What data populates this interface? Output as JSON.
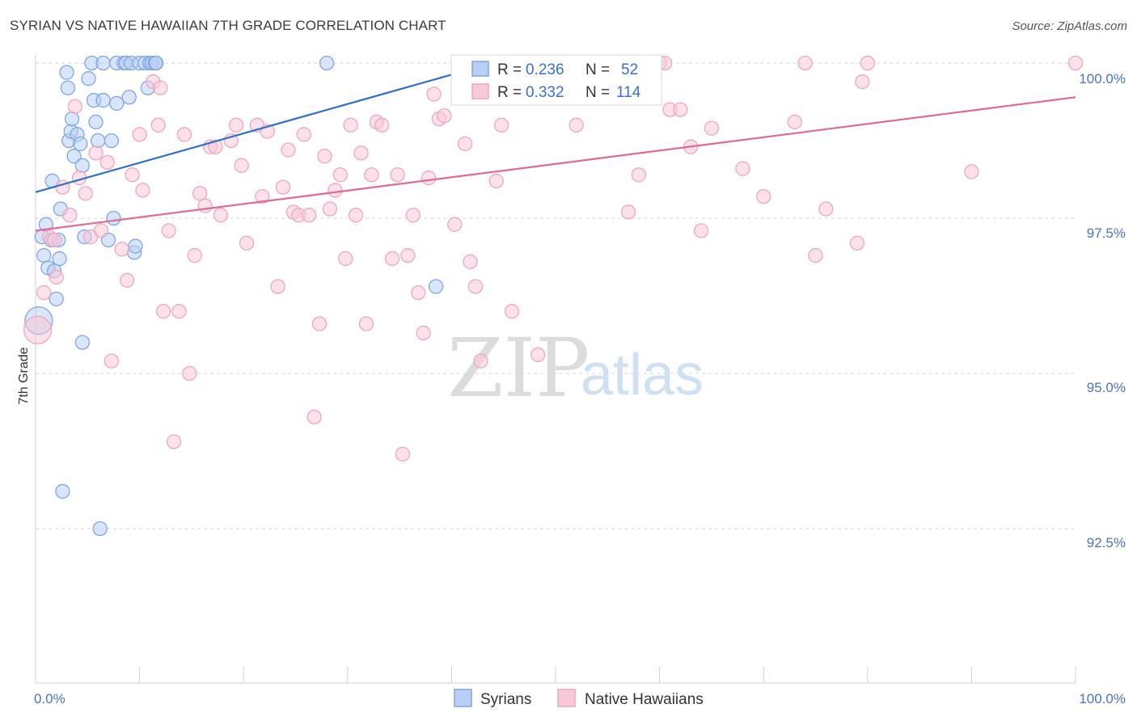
{
  "chart_data": {
    "type": "scatter",
    "title": "SYRIAN VS NATIVE HAWAIIAN 7TH GRADE CORRELATION CHART",
    "source": "Source: ZipAtlas.com",
    "ylabel": "7th Grade",
    "xlim": [
      0,
      100
    ],
    "ylim": [
      90.0,
      100.4
    ],
    "x_tick_labels": [
      "0.0%",
      "100.0%"
    ],
    "y_ticks": [
      100.0,
      97.5,
      95.0,
      92.5
    ],
    "y_tick_labels": [
      "100.0%",
      "97.5%",
      "95.0%",
      "92.5%"
    ],
    "watermark": {
      "zip": "ZIP",
      "atlas": "atlas"
    },
    "legend": [
      {
        "r_label": "R =",
        "r_value": "0.236",
        "n_label": "N =",
        "n_value": "52"
      },
      {
        "r_label": "R =",
        "r_value": "0.332",
        "n_label": "N =",
        "n_value": "114"
      }
    ],
    "series": [
      {
        "name": "Syrians",
        "color": "#7fa6e6",
        "fill": "#b9cff3",
        "line_color": "#2f6fcc",
        "trend": {
          "x": [
            0,
            45
          ],
          "y": [
            97.92,
            100.05
          ]
        },
        "points": [
          [
            0.3,
            95.85
          ],
          [
            0.6,
            97.2
          ],
          [
            0.8,
            96.9
          ],
          [
            1.0,
            97.4
          ],
          [
            1.2,
            96.7
          ],
          [
            1.5,
            97.15
          ],
          [
            1.6,
            98.1
          ],
          [
            1.8,
            96.65
          ],
          [
            2.0,
            96.2
          ],
          [
            2.2,
            97.15
          ],
          [
            2.3,
            96.85
          ],
          [
            2.4,
            97.65
          ],
          [
            2.6,
            93.1
          ],
          [
            3.0,
            99.85
          ],
          [
            3.1,
            99.6
          ],
          [
            3.2,
            98.75
          ],
          [
            3.4,
            98.9
          ],
          [
            3.5,
            99.1
          ],
          [
            3.7,
            98.5
          ],
          [
            4.0,
            98.85
          ],
          [
            4.3,
            98.7
          ],
          [
            4.5,
            98.35
          ],
          [
            4.5,
            95.5
          ],
          [
            4.7,
            97.2
          ],
          [
            5.1,
            99.75
          ],
          [
            5.4,
            100.0
          ],
          [
            5.6,
            99.4
          ],
          [
            5.8,
            99.05
          ],
          [
            6.0,
            98.75
          ],
          [
            6.2,
            92.5
          ],
          [
            6.5,
            100.0
          ],
          [
            6.5,
            99.4
          ],
          [
            7.0,
            97.15
          ],
          [
            7.3,
            98.75
          ],
          [
            7.5,
            97.5
          ],
          [
            7.8,
            100.0
          ],
          [
            7.8,
            99.35
          ],
          [
            8.5,
            100.0
          ],
          [
            8.7,
            100.0
          ],
          [
            9.0,
            99.45
          ],
          [
            9.2,
            100.0
          ],
          [
            9.5,
            96.95
          ],
          [
            9.6,
            97.05
          ],
          [
            10.0,
            100.0
          ],
          [
            10.5,
            100.0
          ],
          [
            10.8,
            99.6
          ],
          [
            11.0,
            100.0
          ],
          [
            11.2,
            100.0
          ],
          [
            11.5,
            100.0
          ],
          [
            11.6,
            100.0
          ],
          [
            28.0,
            100.0
          ],
          [
            38.5,
            96.4
          ]
        ]
      },
      {
        "name": "Native Hawaiians",
        "color": "#f0a6bd",
        "fill": "#f8c9d7",
        "line_color": "#e06a93",
        "trend": {
          "x": [
            0,
            100
          ],
          "y": [
            97.3,
            99.45
          ]
        },
        "points": [
          [
            0.2,
            95.7
          ],
          [
            0.8,
            96.3
          ],
          [
            1.3,
            97.2
          ],
          [
            1.8,
            97.15
          ],
          [
            2.0,
            96.55
          ],
          [
            2.6,
            98.0
          ],
          [
            3.3,
            97.55
          ],
          [
            3.8,
            99.3
          ],
          [
            4.2,
            98.15
          ],
          [
            4.8,
            97.9
          ],
          [
            5.3,
            97.2
          ],
          [
            5.8,
            98.55
          ],
          [
            6.3,
            97.3
          ],
          [
            6.9,
            98.4
          ],
          [
            7.3,
            95.2
          ],
          [
            8.3,
            97.0
          ],
          [
            8.8,
            96.5
          ],
          [
            9.3,
            98.2
          ],
          [
            10.0,
            98.85
          ],
          [
            10.3,
            97.95
          ],
          [
            11.3,
            99.7
          ],
          [
            11.8,
            99.0
          ],
          [
            12.3,
            96.0
          ],
          [
            12.8,
            97.3
          ],
          [
            13.3,
            93.9
          ],
          [
            13.8,
            96.0
          ],
          [
            14.3,
            98.85
          ],
          [
            14.8,
            95.0
          ],
          [
            15.3,
            96.9
          ],
          [
            15.8,
            97.9
          ],
          [
            16.3,
            97.7
          ],
          [
            16.8,
            98.65
          ],
          [
            17.3,
            98.65
          ],
          [
            17.8,
            97.55
          ],
          [
            18.8,
            98.75
          ],
          [
            19.3,
            99.0
          ],
          [
            19.8,
            98.35
          ],
          [
            20.3,
            97.1
          ],
          [
            21.3,
            99.0
          ],
          [
            21.8,
            97.85
          ],
          [
            22.3,
            98.9
          ],
          [
            23.3,
            96.4
          ],
          [
            23.8,
            98.0
          ],
          [
            24.3,
            98.6
          ],
          [
            24.8,
            97.6
          ],
          [
            25.3,
            97.55
          ],
          [
            25.8,
            98.85
          ],
          [
            26.3,
            97.55
          ],
          [
            26.8,
            94.3
          ],
          [
            27.3,
            95.8
          ],
          [
            27.8,
            98.5
          ],
          [
            28.3,
            97.65
          ],
          [
            28.8,
            97.95
          ],
          [
            29.3,
            98.2
          ],
          [
            29.8,
            96.85
          ],
          [
            30.3,
            99.0
          ],
          [
            30.8,
            97.55
          ],
          [
            31.3,
            98.55
          ],
          [
            31.8,
            95.8
          ],
          [
            32.3,
            98.2
          ],
          [
            32.8,
            99.05
          ],
          [
            33.3,
            99.0
          ],
          [
            34.3,
            96.85
          ],
          [
            34.8,
            98.2
          ],
          [
            35.3,
            93.7
          ],
          [
            35.8,
            96.9
          ],
          [
            36.3,
            97.55
          ],
          [
            36.8,
            96.3
          ],
          [
            37.3,
            95.65
          ],
          [
            37.8,
            98.15
          ],
          [
            38.3,
            99.5
          ],
          [
            38.8,
            99.1
          ],
          [
            39.3,
            99.15
          ],
          [
            40.3,
            97.4
          ],
          [
            41.3,
            98.7
          ],
          [
            41.8,
            96.8
          ],
          [
            42.3,
            96.4
          ],
          [
            42.8,
            95.2
          ],
          [
            43.8,
            100.0
          ],
          [
            44.3,
            98.1
          ],
          [
            44.8,
            99.0
          ],
          [
            45.8,
            96.0
          ],
          [
            46.8,
            100.0
          ],
          [
            47.3,
            100.0
          ],
          [
            48.3,
            95.3
          ],
          [
            49.0,
            100.0
          ],
          [
            50.0,
            100.0
          ],
          [
            52.0,
            99.0
          ],
          [
            54.0,
            100.0
          ],
          [
            56.0,
            100.0
          ],
          [
            57.0,
            97.6
          ],
          [
            58.0,
            98.2
          ],
          [
            59.0,
            100.0
          ],
          [
            60.0,
            100.0
          ],
          [
            61.0,
            99.25
          ],
          [
            62.0,
            99.25
          ],
          [
            63.0,
            98.65
          ],
          [
            64.0,
            97.3
          ],
          [
            65.0,
            98.95
          ],
          [
            68.0,
            98.3
          ],
          [
            70.0,
            97.85
          ],
          [
            73.0,
            99.05
          ],
          [
            74.0,
            100.0
          ],
          [
            75.0,
            96.9
          ],
          [
            76.0,
            97.65
          ],
          [
            79.0,
            97.1
          ],
          [
            79.5,
            99.7
          ],
          [
            80.0,
            100.0
          ],
          [
            90.0,
            98.25
          ],
          [
            100.0,
            100.0
          ],
          [
            44.0,
            100.0
          ],
          [
            51.5,
            100.0
          ],
          [
            60.5,
            100.0
          ],
          [
            12.0,
            99.6
          ]
        ]
      }
    ]
  }
}
